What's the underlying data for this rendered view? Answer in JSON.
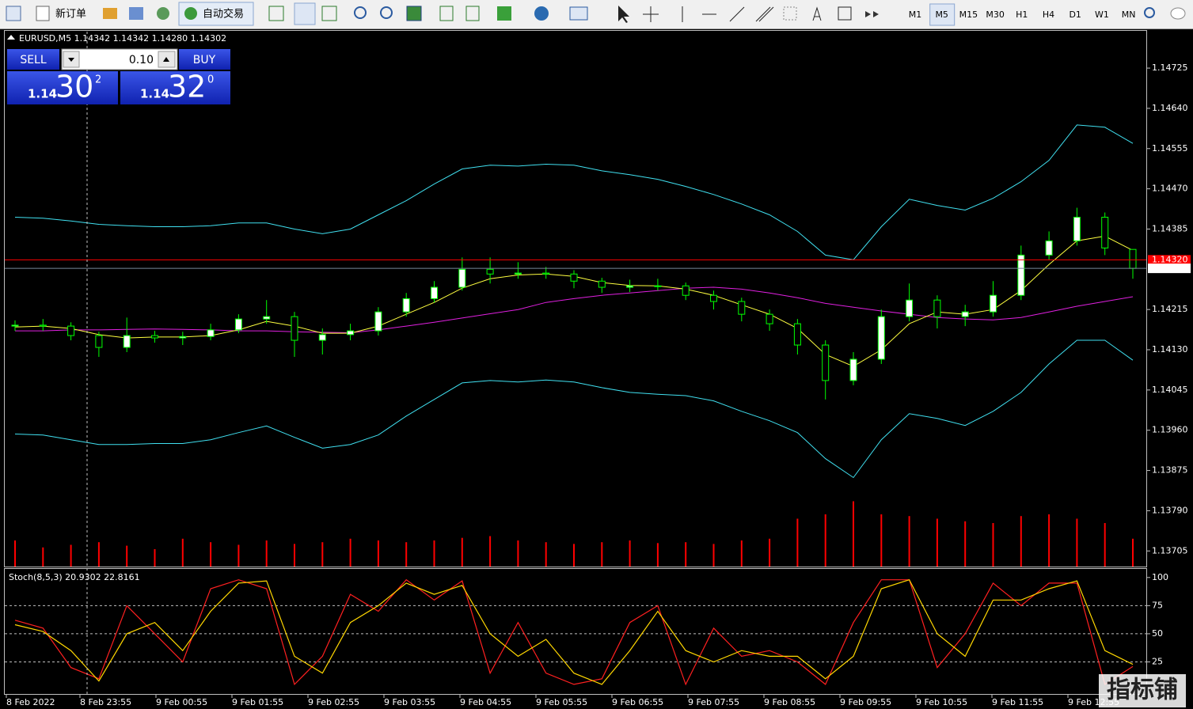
{
  "toolbar": {
    "new_order": "新订单",
    "auto_trading": "自动交易",
    "timeframes": [
      "M1",
      "M5",
      "M15",
      "M30",
      "H1",
      "H4",
      "D1",
      "W1",
      "MN"
    ],
    "active_timeframe": 1
  },
  "trade_panel": {
    "sell": "SELL",
    "buy": "BUY",
    "lot": "0.10",
    "sell_price": {
      "prefix": "1.14",
      "big": "30",
      "sup": "2"
    },
    "buy_price": {
      "prefix": "1.14",
      "big": "32",
      "sup": "0"
    }
  },
  "watermark": "指标铺",
  "time_labels": [
    "8 Feb 2022",
    "8 Feb 23:55",
    "9 Feb 00:55",
    "9 Feb 01:55",
    "9 Feb 02:55",
    "9 Feb 03:55",
    "9 Feb 04:55",
    "9 Feb 05:55",
    "9 Feb 06:55",
    "9 Feb 07:55",
    "9 Feb 08:55",
    "9 Feb 09:55",
    "9 Feb 10:55",
    "9 Feb 11:55",
    "9 Feb 12:55"
  ],
  "chart_data": [
    {
      "type": "candlestick",
      "title": "EURUSD,M5  1.14342 1.14342 1.14280 1.14302",
      "up_color": "#ffffff",
      "down_color": "#000000",
      "wick_color": "#00ff00",
      "open": [
        1.1418,
        1.14182,
        1.1418,
        1.1416,
        1.14135,
        1.1416,
        1.14155,
        1.14158,
        1.14172,
        1.14195,
        1.142,
        1.1415,
        1.14162,
        1.1417,
        1.1421,
        1.14238,
        1.14262,
        1.143,
        1.1429,
        1.14292,
        1.1429,
        1.14275,
        1.14262,
        1.14265,
        1.14265,
        1.14245,
        1.14232,
        1.14205,
        1.14185,
        1.1414,
        1.14065,
        1.1411,
        1.142,
        1.14235,
        1.142,
        1.1421,
        1.14245,
        1.1433,
        1.1436,
        1.1441,
        1.14342
      ],
      "high": [
        1.14192,
        1.14195,
        1.14188,
        1.14168,
        1.14198,
        1.1417,
        1.14168,
        1.14185,
        1.14205,
        1.14235,
        1.1421,
        1.14175,
        1.14185,
        1.1422,
        1.1425,
        1.14275,
        1.14325,
        1.14325,
        1.14315,
        1.14305,
        1.14298,
        1.14282,
        1.14278,
        1.1428,
        1.14272,
        1.14255,
        1.1424,
        1.14215,
        1.14195,
        1.1415,
        1.14125,
        1.14215,
        1.1427,
        1.14245,
        1.14225,
        1.14275,
        1.1435,
        1.1438,
        1.1443,
        1.1442,
        1.14342
      ],
      "low": [
        1.1417,
        1.1417,
        1.1415,
        1.14115,
        1.14125,
        1.14145,
        1.1414,
        1.1415,
        1.14165,
        1.14185,
        1.14115,
        1.1412,
        1.1415,
        1.1416,
        1.142,
        1.1423,
        1.14255,
        1.1427,
        1.1428,
        1.1428,
        1.1426,
        1.1425,
        1.14252,
        1.14255,
        1.14235,
        1.14215,
        1.1419,
        1.1417,
        1.1412,
        1.14025,
        1.14055,
        1.141,
        1.1419,
        1.14175,
        1.1418,
        1.142,
        1.14235,
        1.1432,
        1.1435,
        1.1433,
        1.1428
      ],
      "close": [
        1.14182,
        1.1418,
        1.1416,
        1.14135,
        1.1416,
        1.14155,
        1.14158,
        1.14172,
        1.14195,
        1.142,
        1.1415,
        1.14162,
        1.1417,
        1.1421,
        1.14238,
        1.14262,
        1.143,
        1.1429,
        1.14292,
        1.1429,
        1.14275,
        1.14262,
        1.14265,
        1.14265,
        1.14245,
        1.14232,
        1.14205,
        1.14185,
        1.1414,
        1.14065,
        1.1411,
        1.142,
        1.14235,
        1.142,
        1.1421,
        1.14245,
        1.1433,
        1.1436,
        1.1441,
        1.14345,
        1.14302
      ],
      "overlays": [
        {
          "color": "#40e0f0",
          "values": [
            1.1441,
            1.14408,
            1.14402,
            1.14395,
            1.14392,
            1.1439,
            1.1439,
            1.14392,
            1.14398,
            1.14398,
            1.14385,
            1.14375,
            1.14385,
            1.14415,
            1.14445,
            1.1448,
            1.14512,
            1.1452,
            1.14518,
            1.14522,
            1.1452,
            1.14508,
            1.145,
            1.1449,
            1.14475,
            1.14458,
            1.14438,
            1.14415,
            1.1438,
            1.1433,
            1.1432,
            1.1439,
            1.14448,
            1.14435,
            1.14425,
            1.1445,
            1.14485,
            1.1453,
            1.14605,
            1.146,
            1.14566
          ]
        },
        {
          "color": "#40e0f0",
          "values": [
            1.13952,
            1.1395,
            1.1394,
            1.1393,
            1.1393,
            1.13932,
            1.13932,
            1.1394,
            1.13955,
            1.13969,
            1.13945,
            1.13922,
            1.1393,
            1.1395,
            1.1399,
            1.14025,
            1.1406,
            1.14065,
            1.14062,
            1.14066,
            1.14062,
            1.1405,
            1.1404,
            1.14036,
            1.14033,
            1.14022,
            1.14,
            1.1398,
            1.13955,
            1.139,
            1.1386,
            1.1394,
            1.13995,
            1.13985,
            1.1397,
            1.14,
            1.1404,
            1.141,
            1.1415,
            1.1415,
            1.14108
          ]
        },
        {
          "color": "#e020e0",
          "values": [
            1.1417,
            1.1417,
            1.14172,
            1.14172,
            1.14173,
            1.14174,
            1.14173,
            1.14172,
            1.1417,
            1.1417,
            1.14168,
            1.14167,
            1.14166,
            1.14172,
            1.1418,
            1.14188,
            1.14197,
            1.14206,
            1.14215,
            1.1423,
            1.14238,
            1.14245,
            1.1425,
            1.14255,
            1.1426,
            1.14262,
            1.14258,
            1.1425,
            1.1424,
            1.14228,
            1.1422,
            1.14212,
            1.14205,
            1.14198,
            1.14195,
            1.14193,
            1.14198,
            1.1421,
            1.14222,
            1.14232,
            1.14242
          ]
        },
        {
          "color": "#ffff40",
          "values": [
            1.14178,
            1.1418,
            1.14175,
            1.14162,
            1.14155,
            1.14157,
            1.14157,
            1.1416,
            1.14172,
            1.1419,
            1.1418,
            1.14165,
            1.14165,
            1.1418,
            1.14205,
            1.1423,
            1.1426,
            1.1428,
            1.14288,
            1.1429,
            1.14285,
            1.14272,
            1.14266,
            1.14265,
            1.14258,
            1.14245,
            1.14225,
            1.14205,
            1.14175,
            1.1412,
            1.14095,
            1.1413,
            1.14185,
            1.1421,
            1.14205,
            1.14215,
            1.14255,
            1.1431,
            1.1436,
            1.1437,
            1.1434
          ]
        }
      ],
      "volume": {
        "color": "#ff0000",
        "values": [
          30,
          22,
          25,
          28,
          24,
          20,
          32,
          28,
          25,
          30,
          26,
          28,
          32,
          30,
          28,
          30,
          33,
          35,
          30,
          28,
          26,
          28,
          30,
          27,
          28,
          26,
          30,
          32,
          55,
          60,
          75,
          60,
          58,
          55,
          52,
          50,
          58,
          60,
          55,
          50,
          32
        ]
      },
      "ylim": [
        1.13672,
        1.14802
      ],
      "yticks": [
        {
          "value": 1.14725,
          "label": "1.14725"
        },
        {
          "value": 1.1464,
          "label": "1.14640"
        },
        {
          "value": 1.14555,
          "label": "1.14555"
        },
        {
          "value": 1.1447,
          "label": "1.14470"
        },
        {
          "value": 1.14385,
          "label": "1.14385"
        },
        {
          "value": 1.14215,
          "label": "1.14215"
        },
        {
          "value": 1.1413,
          "label": "1.14130"
        },
        {
          "value": 1.14045,
          "label": "1.14045"
        },
        {
          "value": 1.1396,
          "label": "1.13960"
        },
        {
          "value": 1.13875,
          "label": "1.13875"
        },
        {
          "value": 1.1379,
          "label": "1.13790"
        },
        {
          "value": 1.13705,
          "label": "1.13705"
        }
      ],
      "ask": {
        "value": 1.1432,
        "label": "1.14320"
      },
      "ask_color": "#ff0000",
      "bid": {
        "value": 1.14302,
        "label": "1.14302"
      },
      "bid_color": "#778899"
    },
    {
      "type": "line",
      "title": "Stoch(8,5,3) 20.9302 22.8161",
      "series": [
        {
          "color": "#ff2020",
          "values": [
            62,
            55,
            20,
            10,
            75,
            50,
            25,
            90,
            98,
            90,
            5,
            30,
            85,
            70,
            98,
            80,
            97,
            15,
            60,
            15,
            5,
            10,
            60,
            75,
            5,
            55,
            30,
            35,
            25,
            5,
            60,
            98,
            98,
            20,
            50,
            95,
            75,
            95,
            95,
            5,
            20.9302
          ]
        },
        {
          "color": "#ffd700",
          "values": [
            58,
            52,
            35,
            8,
            50,
            60,
            35,
            70,
            95,
            97,
            30,
            15,
            60,
            75,
            95,
            85,
            93,
            50,
            30,
            45,
            15,
            5,
            35,
            70,
            35,
            25,
            35,
            30,
            30,
            10,
            30,
            90,
            98,
            50,
            30,
            80,
            80,
            90,
            97,
            35,
            22.8161
          ]
        }
      ],
      "ylim": [
        -3.5,
        107.6
      ],
      "yticks": [
        100,
        75,
        50,
        25
      ],
      "levels": [
        75,
        50,
        25
      ]
    }
  ]
}
